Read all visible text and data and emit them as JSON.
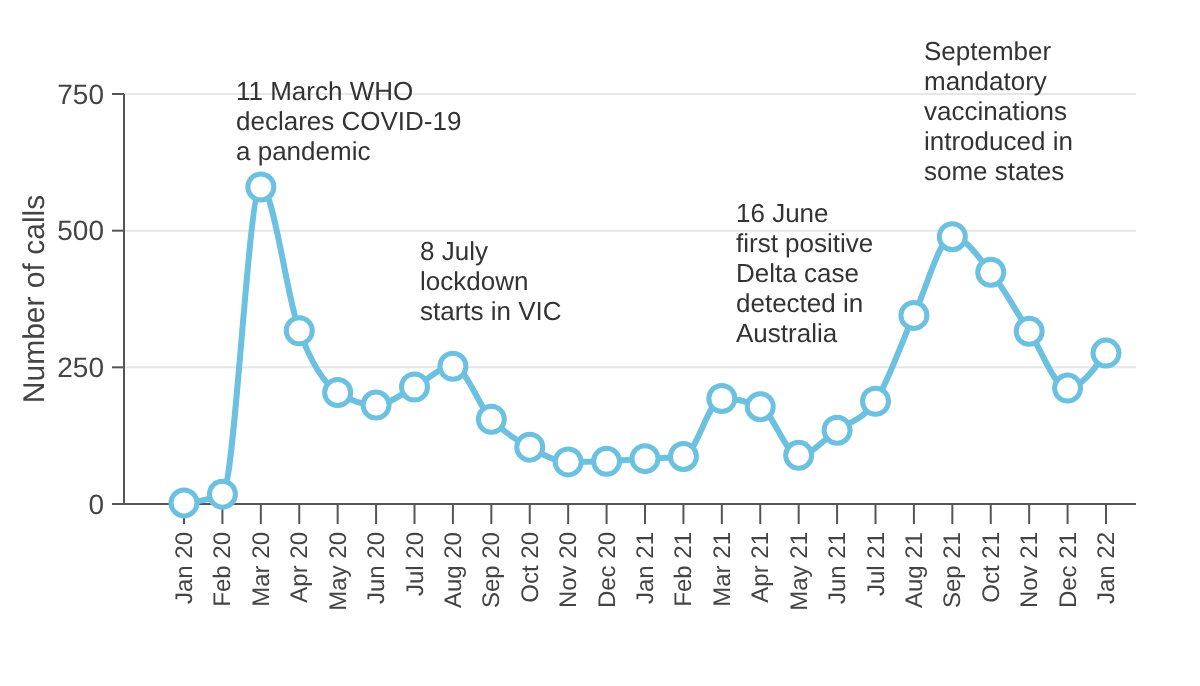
{
  "chart_data": {
    "type": "line",
    "ylabel": "Number of calls",
    "categories": [
      "Jan 20",
      "Feb 20",
      "Mar 20",
      "Apr 20",
      "May 20",
      "Jun 20",
      "Jul 20",
      "Aug 20",
      "Sep 20",
      "Oct 20",
      "Nov 20",
      "Dec 20",
      "Jan 21",
      "Feb 21",
      "Mar 21",
      "Apr 21",
      "May 21",
      "Jun 21",
      "Jul 21",
      "Aug 21",
      "Sep 21",
      "Oct 21",
      "Nov 21",
      "Dec 21",
      "Jan 22"
    ],
    "series": [
      {
        "color": "#6cc0e0",
        "values": [
          2,
          18,
          580,
          317,
          204,
          181,
          214,
          252,
          155,
          104,
          77,
          78,
          83,
          87,
          193,
          178,
          89,
          135,
          188,
          345,
          489,
          424,
          316,
          212,
          276
        ]
      }
    ],
    "ylim": [
      0,
      750
    ],
    "yticks": [
      0,
      250,
      500,
      750
    ],
    "grid": "y",
    "marker": "circle",
    "line_style": "solid",
    "annotations": [
      "11 March WHO\ndeclares COVID-19\na pandemic",
      "8 July\nlockdown\nstarts in VIC",
      "16 June\nfirst positive\nDelta case\ndetected in\nAustralia",
      "September\nmandatory\nvaccinations\nintroduced in\nsome states"
    ]
  }
}
